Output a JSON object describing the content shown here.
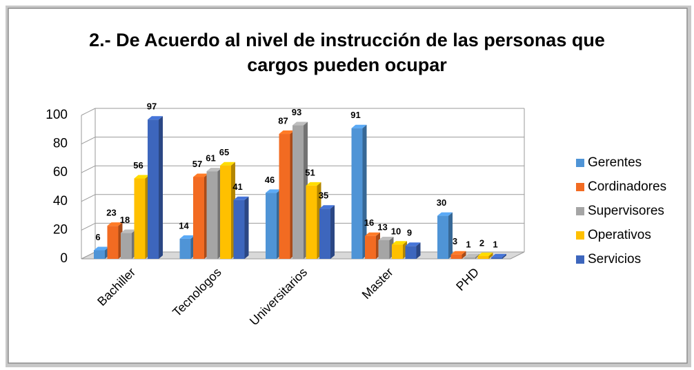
{
  "chart_data": {
    "type": "bar3d",
    "title": "2.- De Acuerdo al nivel de instrucción de las personas que cargos pueden ocupar",
    "categories": [
      "Bachiller",
      "Tecnologos",
      "Universitarios",
      "Master",
      "PHD"
    ],
    "series": [
      {
        "name": "Gerentes",
        "color": "#4f94d6",
        "values": [
          6,
          14,
          46,
          91,
          30
        ]
      },
      {
        "name": "Cordinadores",
        "color": "#f26b22",
        "values": [
          23,
          57,
          87,
          16,
          3
        ]
      },
      {
        "name": "Supervisores",
        "color": "#a5a5a5",
        "values": [
          18,
          61,
          93,
          13,
          1
        ]
      },
      {
        "name": "Operativos",
        "color": "#ffc000",
        "values": [
          56,
          65,
          51,
          10,
          2
        ]
      },
      {
        "name": "Servicios",
        "color": "#3d66bd",
        "values": [
          97,
          41,
          35,
          9,
          1
        ]
      }
    ],
    "ylim": [
      0,
      100
    ],
    "yticks": [
      0,
      20,
      40,
      60,
      80,
      100
    ],
    "grid": true,
    "legend": "right"
  }
}
